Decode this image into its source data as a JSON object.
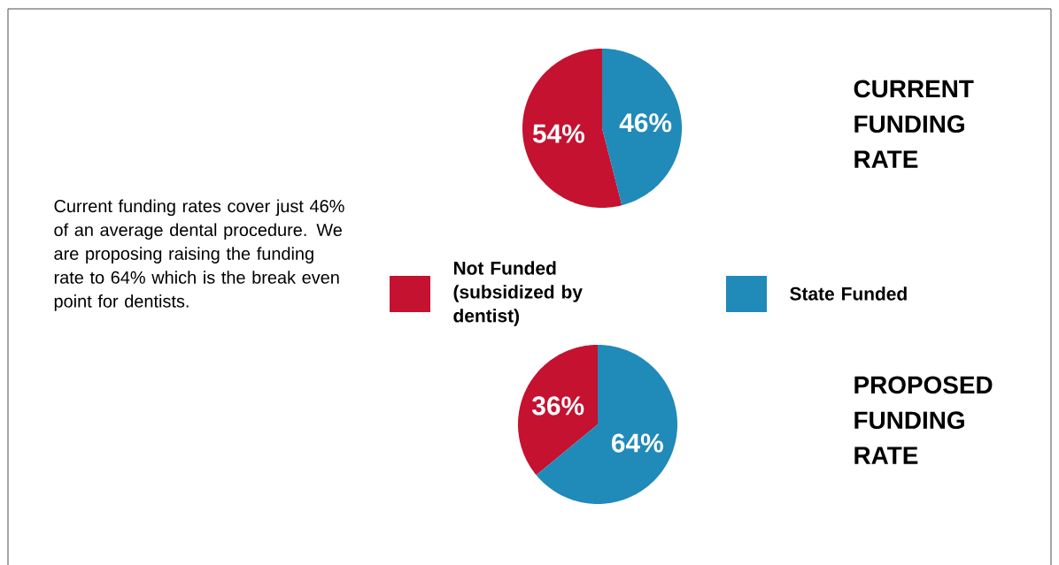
{
  "chart_data": [
    {
      "type": "pie",
      "title": "CURRENT FUNDING RATE",
      "categories": [
        "Not Funded (subsidized by dentist)",
        "State Funded"
      ],
      "values": [
        54,
        46
      ],
      "value_labels": [
        "54%",
        "46%"
      ],
      "colors": [
        "#c41230",
        "#208ab8"
      ],
      "legend": "bottom",
      "annotations": [
        "Current funding rates cover just 46% of an average dental procedure. We are proposing raising the funding rate to 64% which is the break even point for dentists."
      ]
    },
    {
      "type": "pie",
      "title": "PROPOSED FUNDING RATE",
      "categories": [
        null,
        null
      ],
      "values": [
        36,
        64
      ],
      "value_labels": [
        "36%",
        "64%"
      ],
      "colors": [
        "#c41230",
        "#208ab8"
      ]
    }
  ]
}
